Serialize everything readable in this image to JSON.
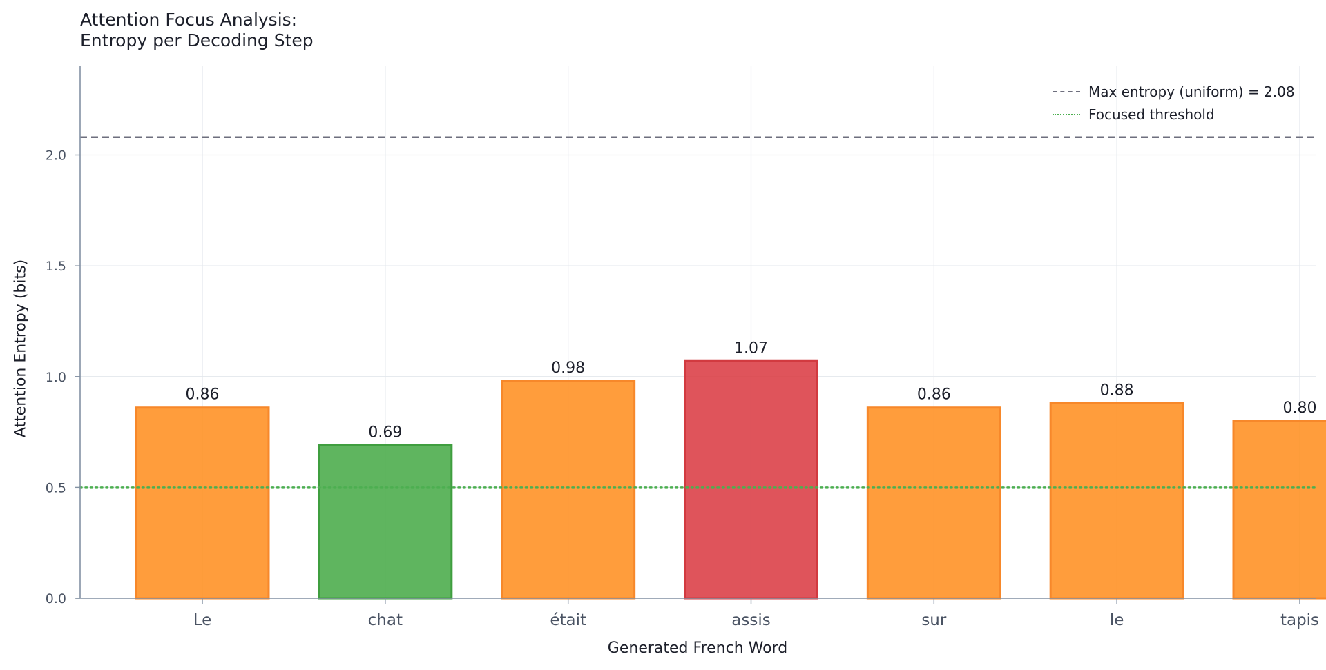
{
  "chart_data": {
    "type": "bar",
    "title_lines": [
      "Attention Focus Analysis:",
      "Entropy per Decoding Step"
    ],
    "xlabel": "Generated French Word",
    "ylabel": "Attention Entropy (bits)",
    "categories": [
      "Le",
      "chat",
      "était",
      "assis",
      "sur",
      "le",
      "tapis"
    ],
    "values": [
      0.86,
      0.69,
      0.98,
      1.07,
      0.86,
      0.88,
      0.8
    ],
    "value_labels": [
      "0.86",
      "0.69",
      "0.98",
      "1.07",
      "0.86",
      "0.88",
      "0.80"
    ],
    "bar_colors": [
      "#ff8c1a",
      "#43a843",
      "#ff8c1a",
      "#d9363e",
      "#ff8c1a",
      "#ff8c1a",
      "#ff8c1a"
    ],
    "bar_edge_colors": [
      "#f7882a",
      "#3f9e3f",
      "#f7882a",
      "#d23a40",
      "#f7882a",
      "#f7882a",
      "#f7882a"
    ],
    "ylim": [
      0,
      2.4
    ],
    "yticks": [
      0.0,
      0.5,
      1.0,
      1.5,
      2.0
    ],
    "ytick_labels": [
      "0.0",
      "0.5",
      "1.0",
      "1.5",
      "2.0"
    ],
    "grid": true,
    "reference_lines": [
      {
        "name": "Max entropy (uniform) = 2.08",
        "value": 2.08,
        "style": "dashed",
        "color": "#6e6f7e"
      },
      {
        "name": "Focused threshold",
        "value": 0.5,
        "style": "dotted",
        "color": "#4caf50"
      }
    ],
    "legend_position": "top-right"
  }
}
